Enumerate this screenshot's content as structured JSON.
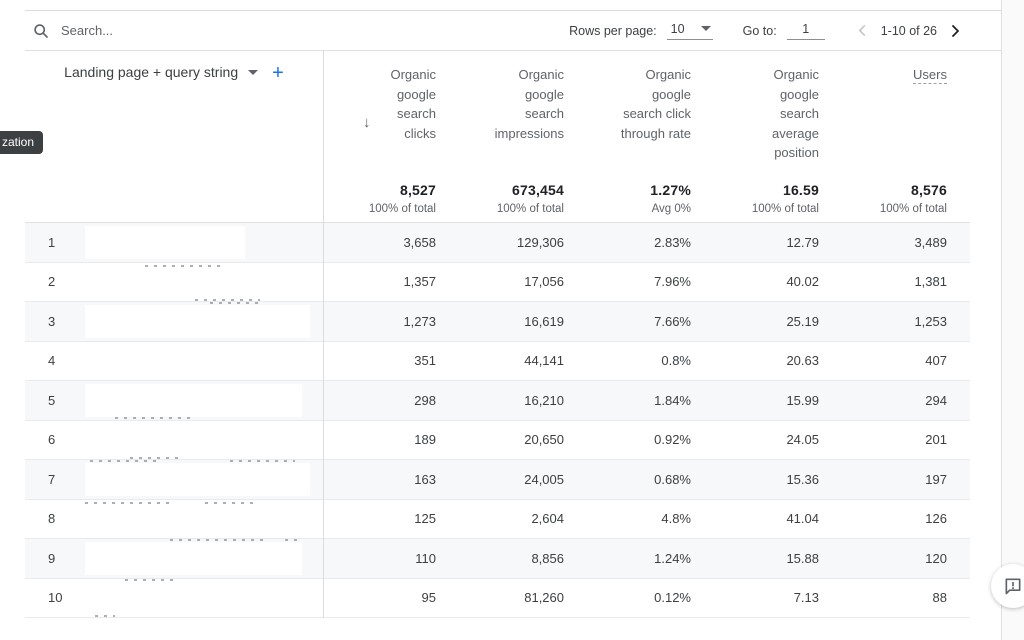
{
  "toolbar": {
    "search_placeholder": "Search...",
    "rows_per_page_label": "Rows per page:",
    "rows_per_page_value": "10",
    "goto_label": "Go to:",
    "goto_value": "1",
    "range_text": "1-10 of 26"
  },
  "edge_tooltip_text": "zation",
  "table": {
    "dimension_header": "Landing page + query string",
    "columns": [
      {
        "key": "clicks",
        "label_lines": [
          "Organic",
          "google",
          "search",
          "clicks"
        ],
        "total": "8,527",
        "total_sub": "100% of total",
        "sorted": true,
        "dashed": false
      },
      {
        "key": "impressions",
        "label_lines": [
          "Organic",
          "google",
          "search",
          "impressions"
        ],
        "total": "673,454",
        "total_sub": "100% of total",
        "sorted": false,
        "dashed": false
      },
      {
        "key": "ctr",
        "label_lines": [
          "Organic",
          "google",
          "search click",
          "through rate"
        ],
        "total": "1.27%",
        "total_sub": "Avg 0%",
        "sorted": false,
        "dashed": false
      },
      {
        "key": "avg_position",
        "label_lines": [
          "Organic",
          "google",
          "search",
          "average",
          "position"
        ],
        "total": "16.59",
        "total_sub": "100% of total",
        "sorted": false,
        "dashed": false
      },
      {
        "key": "users",
        "label_lines": [
          "Users"
        ],
        "total": "8,576",
        "total_sub": "100% of total",
        "sorted": false,
        "dashed": true
      }
    ],
    "rows": [
      {
        "index": "1",
        "clicks": "3,658",
        "impressions": "129,306",
        "ctr": "2.83%",
        "avg_position": "12.79",
        "users": "3,489"
      },
      {
        "index": "2",
        "clicks": "1,357",
        "impressions": "17,056",
        "ctr": "7.96%",
        "avg_position": "40.02",
        "users": "1,381"
      },
      {
        "index": "3",
        "clicks": "1,273",
        "impressions": "16,619",
        "ctr": "7.66%",
        "avg_position": "25.19",
        "users": "1,253"
      },
      {
        "index": "4",
        "clicks": "351",
        "impressions": "44,141",
        "ctr": "0.8%",
        "avg_position": "20.63",
        "users": "407"
      },
      {
        "index": "5",
        "clicks": "298",
        "impressions": "16,210",
        "ctr": "1.84%",
        "avg_position": "15.99",
        "users": "294"
      },
      {
        "index": "6",
        "clicks": "189",
        "impressions": "20,650",
        "ctr": "0.92%",
        "avg_position": "24.05",
        "users": "201"
      },
      {
        "index": "7",
        "clicks": "163",
        "impressions": "24,005",
        "ctr": "0.68%",
        "avg_position": "15.36",
        "users": "197"
      },
      {
        "index": "8",
        "clicks": "125",
        "impressions": "2,604",
        "ctr": "4.8%",
        "avg_position": "41.04",
        "users": "126"
      },
      {
        "index": "9",
        "clicks": "110",
        "impressions": "8,856",
        "ctr": "1.24%",
        "avg_position": "15.88",
        "users": "120"
      },
      {
        "index": "10",
        "clicks": "95",
        "impressions": "81,260",
        "ctr": "0.12%",
        "avg_position": "7.13",
        "users": "88"
      }
    ]
  },
  "icons": {
    "search": "search-icon",
    "sort_desc": "↓",
    "plus": "+",
    "chevron_left": "chevron-left-icon",
    "chevron_right": "chevron-right-icon",
    "feedback": "feedback-icon"
  },
  "colors": {
    "accent_blue": "#1a73e8",
    "stripe": "#f7f8f9",
    "divider": "#dadce0",
    "text_primary": "#3c4043",
    "text_secondary": "#5f6368",
    "tooltip_bg": "#3c4043"
  }
}
